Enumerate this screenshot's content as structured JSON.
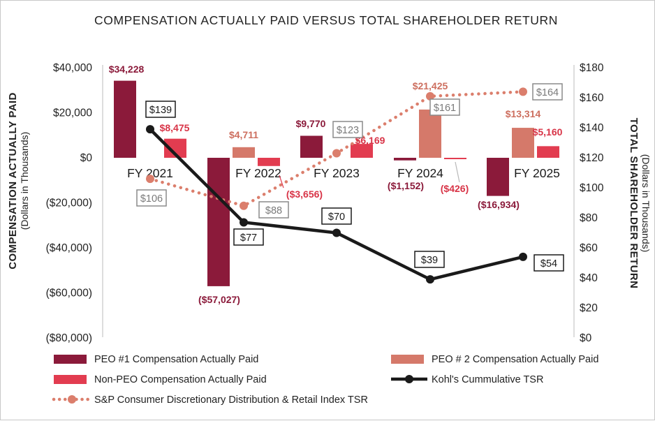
{
  "chart_data": {
    "type": "bar",
    "title": "COMPENSATION ACTUALLY PAID VERSUS TOTAL SHAREHOLDER RETURN",
    "y_left": {
      "label": "COMPENSATION ACTUALLY PAID",
      "sublabel": "(Dollars in Thousands)",
      "range": [
        -80000,
        40000
      ],
      "ticks": [
        40000,
        20000,
        0,
        -20000,
        -40000,
        -60000,
        -80000
      ],
      "tick_labels": [
        "$40,000",
        "$20,000",
        "$0",
        "($20,000)",
        "($40,000)",
        "($60,000)",
        "($80,000)"
      ]
    },
    "y_right": {
      "label": "TOTAL SHAREHOLDER RETURN",
      "sublabel": "(Dollars in Thousands)",
      "range": [
        0,
        180
      ],
      "ticks": [
        180,
        160,
        140,
        120,
        100,
        80,
        60,
        40,
        20,
        0
      ],
      "tick_labels": [
        "$180",
        "$160",
        "$140",
        "$120",
        "$100",
        "$80",
        "$60",
        "$40",
        "$20",
        "$0"
      ]
    },
    "categories": [
      "FY 2021",
      "FY 2022",
      "FY 2023",
      "FY 2024",
      "FY 2025"
    ],
    "bar_series": [
      {
        "name": "PEO #1 Compensation Actually Paid",
        "color": "#8b1a3a",
        "label_color": "#8b1a3a",
        "values": [
          34228,
          -57027,
          9770,
          -1152,
          -16934
        ],
        "labels": [
          "$34,228",
          "($57,027)",
          "$9,770",
          "($1,152)",
          "($16,934)"
        ]
      },
      {
        "name": "PEO # 2 Compensation Actually Paid",
        "color": "#d5796a",
        "label_color": "#cd6f5f",
        "values": [
          null,
          4711,
          null,
          21425,
          13314
        ],
        "labels": [
          "",
          "$4,711",
          "",
          "$21,425",
          "$13,314"
        ]
      },
      {
        "name": "Non-PEO Compensation Actually Paid",
        "color": "#e23c50",
        "label_color": "#d83447",
        "values": [
          8475,
          -3656,
          6169,
          -426,
          5160
        ],
        "labels": [
          "$8,475",
          "($3,656)",
          "$6,169",
          "($426)",
          "$5,160"
        ]
      }
    ],
    "line_series": [
      {
        "name": "Kohl's Cummulative TSR",
        "color": "#1a1a1a",
        "style": "solid",
        "values": [
          139,
          77,
          70,
          39,
          54
        ],
        "labels": [
          "$139",
          "$77",
          "$70",
          "$39",
          "$54"
        ]
      },
      {
        "name": "S&P Consumer Discretionary Distribution & Retail Index TSR",
        "color": "#db7e6c",
        "style": "dotted",
        "values": [
          106,
          88,
          123,
          161,
          164
        ],
        "labels": [
          "$106",
          "$88",
          "$123",
          "$161",
          "$164"
        ]
      }
    ]
  }
}
